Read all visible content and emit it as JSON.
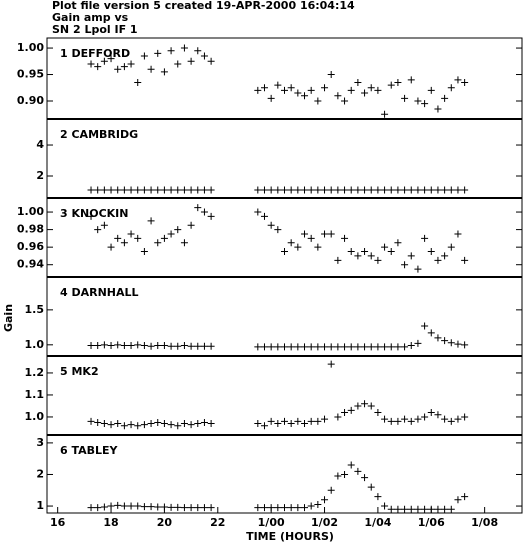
{
  "chart_data": {
    "type": "scatter",
    "title_lines": [
      "Plot file version 5  created 19-APR-2000 16:04:14",
      "Gain amp vs",
      "SN 2 Lpol IF 1"
    ],
    "xlabel": "TIME (HOURS)",
    "ylabel": "Gain",
    "color": "#000000",
    "xlim": [
      15.6,
      33.4
    ],
    "xticks": [
      16,
      18,
      20,
      22,
      {
        "value": 24,
        "label": "1/00"
      },
      {
        "value": 26,
        "label": "1/02"
      },
      {
        "value": 28,
        "label": "1/04"
      },
      {
        "value": 30,
        "label": "1/06"
      },
      {
        "value": 32,
        "label": "1/08"
      }
    ],
    "x": [
      17.25,
      17.5,
      17.75,
      18,
      18.25,
      18.5,
      18.75,
      19,
      19.25,
      19.5,
      19.75,
      20,
      20.25,
      20.5,
      20.75,
      21,
      21.25,
      21.5,
      21.75,
      23.5,
      23.75,
      24,
      24.25,
      24.5,
      24.75,
      25,
      25.25,
      25.5,
      25.75,
      26,
      26.25,
      26.5,
      26.75,
      27,
      27.25,
      27.5,
      27.75,
      28,
      28.25,
      28.5,
      28.75,
      29,
      29.25,
      29.5,
      29.75,
      30,
      30.25,
      30.5,
      30.75,
      31,
      31.25
    ],
    "panels": [
      {
        "label": "1 DEFFORD",
        "ylim": [
          0.866,
          1.019
        ],
        "yticks": [
          {
            "value": 0.9,
            "label": "0.90"
          },
          0.95,
          {
            "value": 1,
            "label": "1.00"
          }
        ],
        "values": [
          0.97,
          0.965,
          0.975,
          0.98,
          0.96,
          0.965,
          0.97,
          0.935,
          0.985,
          0.96,
          0.99,
          0.955,
          0.995,
          0.97,
          1.0,
          0.975,
          0.995,
          0.985,
          0.975,
          0.92,
          0.925,
          0.905,
          0.93,
          0.92,
          0.925,
          0.915,
          0.91,
          0.92,
          0.9,
          0.925,
          0.95,
          0.91,
          0.9,
          0.92,
          0.935,
          0.915,
          0.925,
          0.92,
          0.875,
          0.93,
          0.935,
          0.905,
          0.94,
          0.9,
          0.895,
          0.92,
          0.885,
          0.905,
          0.925,
          0.94,
          0.935
        ]
      },
      {
        "label": "2 CAMBRIDG",
        "ylim": [
          0.58,
          5.68
        ],
        "yticks": [
          2,
          4
        ],
        "values": [
          1.1,
          1.1,
          1.1,
          1.1,
          1.1,
          1.1,
          1.1,
          1.1,
          1.1,
          1.1,
          1.1,
          1.1,
          1.1,
          1.1,
          1.1,
          1.1,
          1.1,
          1.1,
          1.1,
          1.1,
          1.1,
          1.1,
          1.1,
          1.1,
          1.1,
          1.1,
          1.1,
          1.1,
          1.1,
          1.1,
          1.1,
          1.1,
          1.1,
          1.1,
          1.1,
          1.1,
          1.1,
          1.1,
          1.1,
          1.1,
          1.1,
          1.1,
          1.1,
          1.1,
          1.1,
          1.1,
          1.1,
          1.1,
          1.1,
          1.1,
          1.1
        ]
      },
      {
        "label": "3 KNOCKIN",
        "ylim": [
          0.926,
          1.016
        ],
        "yticks": [
          0.94,
          0.96,
          0.98,
          {
            "value": 1,
            "label": "1.00"
          }
        ],
        "values": [
          0.995,
          0.98,
          0.985,
          0.96,
          0.97,
          0.965,
          0.975,
          0.97,
          0.955,
          0.99,
          0.965,
          0.97,
          0.975,
          0.98,
          0.965,
          0.985,
          1.005,
          1.0,
          0.995,
          1.0,
          0.995,
          0.985,
          0.98,
          0.955,
          0.965,
          0.96,
          0.975,
          0.97,
          0.96,
          0.975,
          0.975,
          0.945,
          0.97,
          0.955,
          0.95,
          0.955,
          0.95,
          0.945,
          0.96,
          0.955,
          0.965,
          0.94,
          0.95,
          0.935,
          0.97,
          0.955,
          0.945,
          0.95,
          0.96,
          0.975,
          0.945
        ]
      },
      {
        "label": "4 DARNHALL",
        "ylim": [
          0.84,
          1.97
        ],
        "yticks": [
          {
            "value": 1,
            "label": "1.0"
          },
          1.5
        ],
        "values": [
          0.99,
          0.99,
          1.0,
          0.99,
          1.0,
          0.99,
          0.99,
          1.0,
          0.99,
          0.98,
          0.99,
          0.99,
          0.98,
          0.98,
          0.99,
          0.98,
          0.98,
          0.98,
          0.98,
          0.97,
          0.97,
          0.97,
          0.97,
          0.97,
          0.97,
          0.97,
          0.97,
          0.97,
          0.97,
          0.97,
          0.97,
          0.97,
          0.97,
          0.97,
          0.97,
          0.97,
          0.97,
          0.97,
          0.97,
          0.97,
          0.97,
          0.97,
          0.99,
          1.02,
          1.27,
          1.17,
          1.1,
          1.06,
          1.03,
          1.01,
          1.0
        ]
      },
      {
        "label": "5 MK2",
        "ylim": [
          0.918,
          1.277
        ],
        "yticks": [
          {
            "value": 1,
            "label": "1.0"
          },
          1.1,
          1.2
        ],
        "values": [
          0.98,
          0.975,
          0.97,
          0.965,
          0.97,
          0.96,
          0.965,
          0.96,
          0.965,
          0.97,
          0.975,
          0.97,
          0.965,
          0.96,
          0.97,
          0.965,
          0.97,
          0.975,
          0.97,
          0.97,
          0.96,
          0.98,
          0.97,
          0.98,
          0.97,
          0.98,
          0.97,
          0.98,
          0.98,
          0.99,
          1.24,
          1.0,
          1.02,
          1.03,
          1.05,
          1.06,
          1.05,
          1.02,
          0.99,
          0.98,
          0.98,
          0.99,
          0.98,
          0.99,
          1.0,
          1.02,
          1.01,
          0.99,
          0.98,
          0.99,
          1.0
        ]
      },
      {
        "label": "6 TABLEY",
        "ylim": [
          0.78,
          3.25
        ],
        "yticks": [
          1,
          2,
          3
        ],
        "values": [
          0.95,
          0.95,
          0.97,
          1.0,
          1.02,
          1.0,
          1.0,
          1.0,
          0.98,
          0.98,
          0.97,
          0.97,
          0.96,
          0.96,
          0.95,
          0.95,
          0.95,
          0.95,
          0.95,
          0.95,
          0.95,
          0.95,
          0.95,
          0.95,
          0.95,
          0.95,
          0.95,
          1.0,
          1.05,
          1.2,
          1.5,
          1.95,
          2.0,
          2.3,
          2.1,
          1.9,
          1.6,
          1.3,
          1.0,
          0.9,
          0.9,
          0.9,
          0.9,
          0.9,
          0.9,
          0.9,
          0.9,
          0.9,
          0.9,
          1.2,
          1.3
        ]
      }
    ]
  }
}
